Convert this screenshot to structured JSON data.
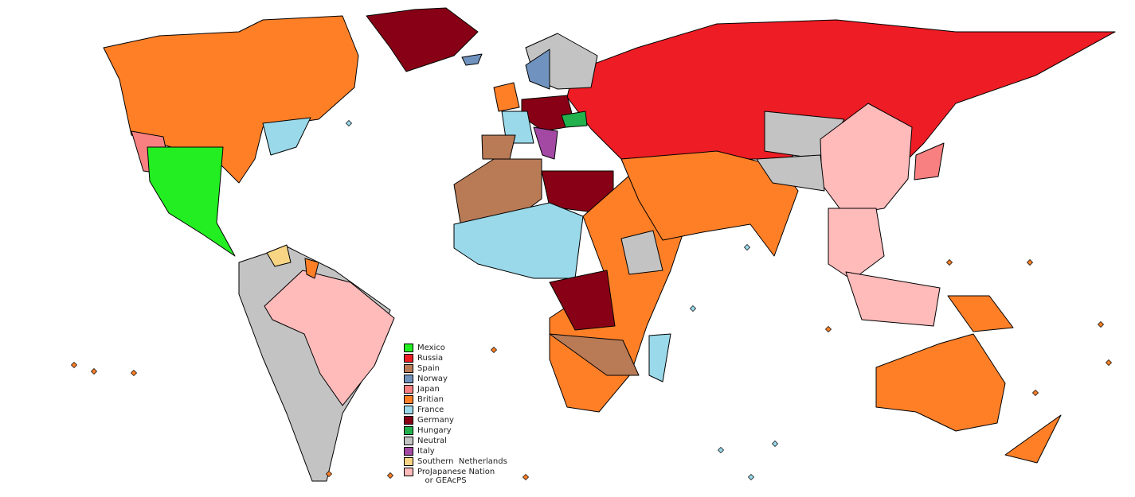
{
  "legend": [
    {
      "key": "mexico",
      "label": "Mexico",
      "color": "#22ee22"
    },
    {
      "key": "russia",
      "label": "Russia",
      "color": "#ee1c24"
    },
    {
      "key": "spain",
      "label": "Spain",
      "color": "#b97a56"
    },
    {
      "key": "norway",
      "label": "Norway",
      "color": "#7092be"
    },
    {
      "key": "japan",
      "label": "Japan",
      "color": "#f88080"
    },
    {
      "key": "britain",
      "label": "Britian",
      "color": "#ff7f27"
    },
    {
      "key": "france",
      "label": "France",
      "color": "#99d9ea"
    },
    {
      "key": "germany",
      "label": "Germany",
      "color": "#880015"
    },
    {
      "key": "hungary",
      "label": "Hungary",
      "color": "#22b14c"
    },
    {
      "key": "neutral",
      "label": "Neutral",
      "color": "#c3c3c3"
    },
    {
      "key": "italy",
      "label": "Italy",
      "color": "#a349a4"
    },
    {
      "key": "southern_netherlands",
      "label": "Southern  Netherlands",
      "color": "#f7d584"
    },
    {
      "key": "projapanese",
      "label": "ProJapanese Nation\n   or GEAcPS",
      "color": "#ffbaba"
    }
  ],
  "colors": {
    "ocean": "#ffffff",
    "border": "#000000"
  }
}
